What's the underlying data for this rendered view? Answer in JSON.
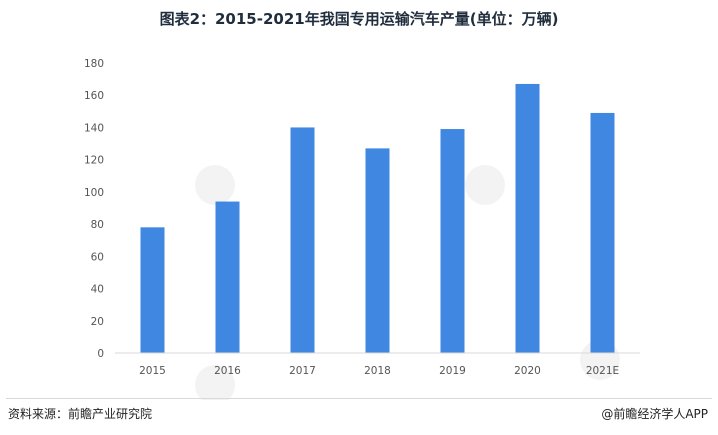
{
  "page": {
    "title": "图表2：2015-2021年我国专用运输汽车产量(单位：万辆)",
    "source": "资料来源：前瞻产业研究院",
    "credit": "@前瞻经济学人APP"
  },
  "colors": {
    "bar": "#3f87e0",
    "axis": "#d9d9d9"
  },
  "chart_data": {
    "type": "bar",
    "title": "图表2：2015-2021年我国专用运输汽车产量(单位：万辆)",
    "categories": [
      "2015",
      "2016",
      "2017",
      "2018",
      "2019",
      "2020",
      "2021E"
    ],
    "values": [
      78,
      94,
      140,
      127,
      139,
      167,
      149
    ],
    "ylim": [
      0,
      180
    ],
    "yticks": [
      0,
      20,
      40,
      60,
      80,
      100,
      120,
      140,
      160,
      180
    ],
    "grid": false,
    "xlabel": "",
    "ylabel": ""
  }
}
